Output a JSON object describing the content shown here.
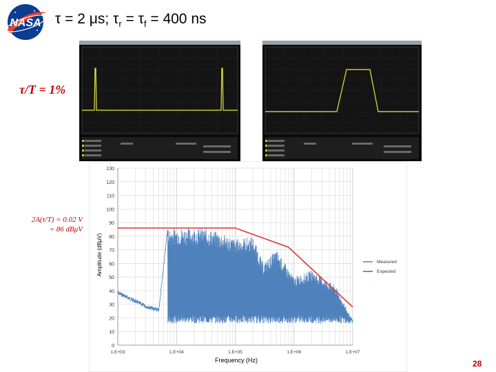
{
  "title": {
    "tau": "τ = 2 μs; τ",
    "r_sub": "r",
    "mid": " = τ",
    "f_sub": "f",
    "tail": "  = 400 ns"
  },
  "logo": {
    "text": "NASA"
  },
  "duty_label": "τ/T = 1%",
  "amplitude_label": {
    "line1": "2A(τ/T) = 0.02 V",
    "line2": "= 86 dBμV"
  },
  "page_number": "28",
  "colors": {
    "accent": "#c00000",
    "measured": "#4f81bd",
    "expected": "#e03030",
    "scope_trace": "#e8e840",
    "scope_bg": "#141414"
  },
  "chart_data": {
    "type": "line",
    "xlabel": "Frequency (Hz)",
    "ylabel": "Amplitude (dBμV)",
    "xscale": "log",
    "xlim": [
      1000,
      10000000
    ],
    "ylim": [
      0,
      130
    ],
    "yticks": [
      0,
      10,
      20,
      30,
      40,
      50,
      60,
      70,
      80,
      90,
      100,
      110,
      120,
      130
    ],
    "xtick_labels": [
      "1.E+03",
      "1.E+04",
      "1.E+05",
      "1.E+06",
      "1.E+07"
    ],
    "grid": true,
    "legend_position": "right",
    "series": [
      {
        "name": "Measured",
        "envelope": true,
        "x": [
          1000,
          3000,
          5000,
          7000,
          10000,
          30000,
          60000,
          100000,
          200000,
          300000,
          500000,
          700000,
          1000000,
          2000000,
          5000000,
          10000000
        ],
        "y": [
          40,
          30,
          27,
          86,
          86,
          86,
          82,
          78,
          80,
          60,
          70,
          60,
          50,
          55,
          44,
          18
        ]
      },
      {
        "name": "Expected",
        "x": [
          1000,
          100000,
          800000,
          10000000
        ],
        "y": [
          86,
          86,
          72,
          28
        ]
      }
    ]
  }
}
